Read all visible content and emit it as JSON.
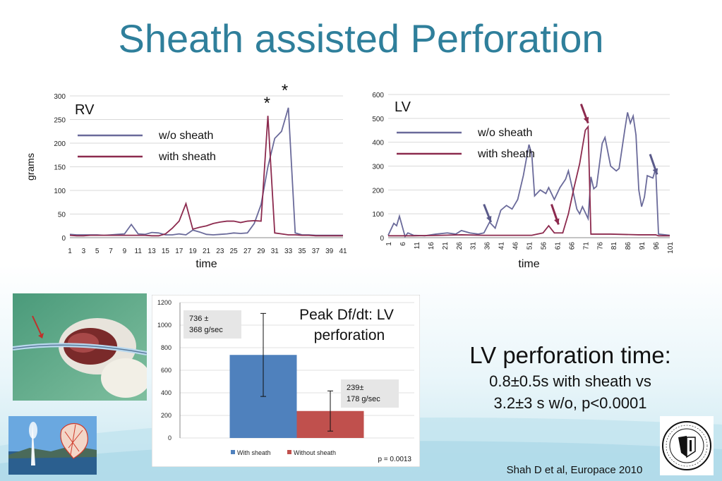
{
  "title": "Sheath assisted Perforation",
  "colors": {
    "wo_sheath": "#6a6a9a",
    "with_sheath": "#8c2a4e",
    "title": "#2f7f9b",
    "bar_with": "#4f81bd",
    "bar_without": "#c0504d"
  },
  "chart_data": [
    {
      "type": "line",
      "panel_label": "RV",
      "xlabel": "time",
      "ylabel": "grams",
      "ylim": [
        0,
        300
      ],
      "yticks": [
        0,
        50,
        100,
        150,
        200,
        250,
        300
      ],
      "xticks": [
        1,
        3,
        5,
        7,
        9,
        11,
        13,
        15,
        17,
        19,
        21,
        23,
        25,
        27,
        29,
        31,
        33,
        35,
        37,
        39,
        41
      ],
      "x": [
        1,
        2,
        3,
        4,
        5,
        6,
        7,
        8,
        9,
        10,
        11,
        12,
        13,
        14,
        15,
        16,
        17,
        18,
        19,
        20,
        21,
        22,
        23,
        24,
        25,
        26,
        27,
        28,
        29,
        30,
        31,
        32,
        33,
        34,
        35,
        36,
        37,
        38,
        39,
        40,
        41
      ],
      "series": [
        {
          "name": "w/o sheath",
          "values": [
            7,
            6,
            6,
            6,
            6,
            5,
            6,
            7,
            8,
            28,
            8,
            7,
            11,
            10,
            6,
            6,
            8,
            6,
            16,
            12,
            7,
            6,
            7,
            8,
            10,
            9,
            10,
            30,
            70,
            150,
            210,
            225,
            275,
            10,
            6,
            6,
            5,
            5,
            5,
            5,
            5
          ]
        },
        {
          "name": "with sheath",
          "values": [
            5,
            4,
            4,
            5,
            5,
            5,
            5,
            5,
            5,
            5,
            5,
            5,
            4,
            4,
            8,
            20,
            35,
            72,
            18,
            22,
            25,
            30,
            33,
            35,
            35,
            32,
            35,
            36,
            35,
            258,
            10,
            8,
            6,
            6,
            5,
            5,
            4,
            4,
            4,
            4,
            4
          ]
        }
      ],
      "annotations": [
        "*",
        "*"
      ]
    },
    {
      "type": "line",
      "panel_label": "LV",
      "xlabel": "time",
      "ylim": [
        0,
        600
      ],
      "yticks": [
        0,
        100,
        200,
        300,
        400,
        500,
        600
      ],
      "xticks": [
        1,
        6,
        11,
        16,
        21,
        26,
        31,
        36,
        41,
        46,
        51,
        56,
        61,
        66,
        71,
        76,
        81,
        86,
        91,
        96,
        101
      ],
      "series": [
        {
          "name": "w/o sheath",
          "points": [
            [
              1,
              10
            ],
            [
              3,
              60
            ],
            [
              4,
              50
            ],
            [
              5,
              90
            ],
            [
              7,
              5
            ],
            [
              8,
              20
            ],
            [
              10,
              10
            ],
            [
              14,
              8
            ],
            [
              18,
              15
            ],
            [
              22,
              20
            ],
            [
              25,
              15
            ],
            [
              27,
              30
            ],
            [
              30,
              20
            ],
            [
              33,
              15
            ],
            [
              35,
              20
            ],
            [
              37,
              65
            ],
            [
              39,
              40
            ],
            [
              41,
              115
            ],
            [
              43,
              135
            ],
            [
              45,
              120
            ],
            [
              47,
              160
            ],
            [
              49,
              260
            ],
            [
              51,
              390
            ],
            [
              52,
              350
            ],
            [
              53,
              175
            ],
            [
              55,
              200
            ],
            [
              57,
              185
            ],
            [
              58,
              210
            ],
            [
              60,
              160
            ],
            [
              62,
              210
            ],
            [
              64,
              245
            ],
            [
              65,
              280
            ],
            [
              67,
              175
            ],
            [
              68,
              120
            ],
            [
              69,
              100
            ],
            [
              70,
              130
            ],
            [
              72,
              80
            ],
            [
              73,
              255
            ],
            [
              74,
              205
            ],
            [
              75,
              215
            ],
            [
              77,
              395
            ],
            [
              78,
              420
            ],
            [
              80,
              300
            ],
            [
              82,
              280
            ],
            [
              83,
              290
            ],
            [
              85,
              450
            ],
            [
              86,
              525
            ],
            [
              87,
              480
            ],
            [
              88,
              510
            ],
            [
              89,
              430
            ],
            [
              90,
              200
            ],
            [
              91,
              130
            ],
            [
              92,
              170
            ],
            [
              93,
              260
            ],
            [
              95,
              250
            ],
            [
              96,
              290
            ],
            [
              97,
              15
            ],
            [
              101,
              10
            ]
          ]
        },
        {
          "name": "with sheath",
          "points": [
            [
              1,
              8
            ],
            [
              10,
              8
            ],
            [
              20,
              10
            ],
            [
              27,
              12
            ],
            [
              35,
              10
            ],
            [
              45,
              10
            ],
            [
              52,
              10
            ],
            [
              56,
              20
            ],
            [
              58,
              50
            ],
            [
              60,
              20
            ],
            [
              63,
              20
            ],
            [
              65,
              100
            ],
            [
              67,
              210
            ],
            [
              69,
              310
            ],
            [
              71,
              450
            ],
            [
              72,
              465
            ],
            [
              73,
              15
            ],
            [
              80,
              15
            ],
            [
              90,
              12
            ],
            [
              96,
              12
            ],
            [
              97,
              8
            ],
            [
              101,
              8
            ]
          ]
        }
      ],
      "annotations": [
        "gray arrow",
        "gray arrow",
        "dark red arrow",
        "dark red arrow"
      ]
    },
    {
      "type": "bar",
      "title": "Peak Df/dt: LV perforation",
      "categories": [
        "With sheath",
        "Without sheath"
      ],
      "values": [
        736,
        239
      ],
      "errors": [
        368,
        178
      ],
      "ylim": [
        0,
        1200
      ],
      "yticks": [
        0,
        200,
        400,
        600,
        800,
        1000,
        1200
      ],
      "labels": [
        [
          "736 ±",
          "368 g/sec"
        ],
        [
          "239±",
          "178 g/sec"
        ]
      ],
      "pvalue": "p = 0.0013"
    }
  ],
  "conclusion": {
    "heading": "LV perforation time:",
    "line1": "0.8±0.5s with sheath  vs",
    "line2": "3.2±3 s w/o, p<0.0001"
  },
  "citation": "Shah D et al, Europace 2010",
  "photos": [
    "catheter-photo",
    "geneva-fountain-photo",
    "university-seal"
  ],
  "seal_text": "SCHOLA GENEVENSIS"
}
